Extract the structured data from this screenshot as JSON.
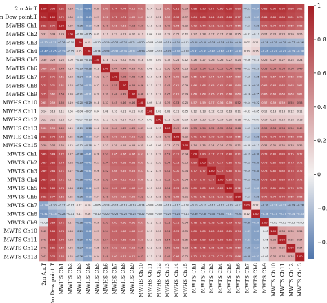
{
  "chart_data": {
    "type": "heatmap",
    "title": "",
    "xlabel": "",
    "ylabel": "",
    "labels": [
      "2m Air.T",
      "2m Dew point.T",
      "MWHS Ch1",
      "MWHS Ch2",
      "MWHS Ch3",
      "MWHS Ch4",
      "MWHS Ch5",
      "MWHS Ch6",
      "MWHS Ch7",
      "MWHS Ch8",
      "MWHS Ch9",
      "MWHS Ch10",
      "MWHS Ch11",
      "MWHS Ch12",
      "MWHS Ch13",
      "MWHS Ch14",
      "MWHS Ch15",
      "MWTS Ch1",
      "MWTS Ch2",
      "MWTS Ch3",
      "MWTS Ch4",
      "MWTS Ch5",
      "MWTS Ch6",
      "MWTS Ch7",
      "MWTS Ch8",
      "MWTS Ch9",
      "MWTS Ch10",
      "MWTS Ch11",
      "MWTS Ch12",
      "MWTS Ch13"
    ],
    "first_row": [
      1.0,
      0.96,
      0.82,
      0.35,
      -0.32,
      -0.47,
      0.3,
      0.6,
      0.74,
      0.74,
      0.65,
      0.61,
      0.14,
      0.22,
      0.6,
      0.81,
      0.39,
      0.88,
      0.9,
      0.87,
      0.86,
      0.9,
      0.8,
      -0.21,
      -0.34,
      0.88,
      0.9,
      0.9,
      0.84,
      0.81
    ],
    "first_column": [
      1.0,
      0.96,
      0.82,
      0.31,
      -0.32,
      -0.47,
      0.3,
      0.6,
      0.74,
      0.75,
      0.75,
      0.65,
      0.14,
      0.22,
      0.6,
      0.81,
      0.39,
      0.89,
      0.89,
      0.89,
      0.89,
      0.9,
      0.82,
      -0.34,
      -0.41,
      -0.06,
      0.42,
      0.42,
      0.42,
      0.43
    ],
    "colorbar": {
      "min": -0.5,
      "max": 1.0,
      "ticks": [
        1.0,
        0.8,
        0.6,
        0.4,
        0.2,
        0.0,
        -0.2,
        -0.4
      ],
      "tick_labels": [
        "1",
        "0.8",
        "0.6",
        "0.4",
        "0.2",
        "0",
        "−0.2",
        "−0.4"
      ]
    },
    "colors": {
      "low": "#5f84b6",
      "mid": "#f4f2f1",
      "high": "#ae2127"
    },
    "annotations": "each cell shows its correlation value to two decimals"
  }
}
